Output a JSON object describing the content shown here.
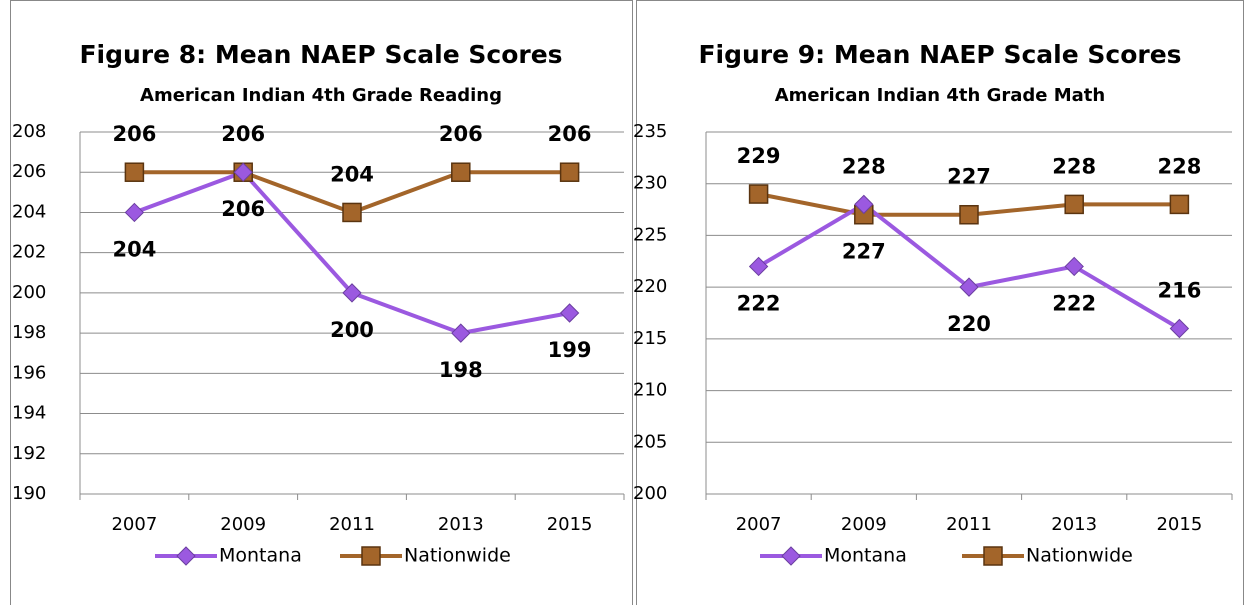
{
  "chart_data": [
    {
      "type": "line",
      "title": "Figure 8:  Mean NAEP Scale Scores",
      "subtitle": "American Indian 4th Grade Reading",
      "categories": [
        "2007",
        "2009",
        "2011",
        "2013",
        "2015"
      ],
      "series": [
        {
          "name": "Montana",
          "color": "#9b59e0",
          "values": [
            204,
            206,
            200,
            198,
            199
          ]
        },
        {
          "name": "Nationwide",
          "color": "#a3652a",
          "values": [
            206,
            206,
            204,
            206,
            206
          ]
        }
      ],
      "ylim": [
        190,
        208
      ],
      "yticks": [
        190,
        192,
        194,
        196,
        198,
        200,
        202,
        204,
        206,
        208
      ],
      "grid": true,
      "legend": "bottom"
    },
    {
      "type": "line",
      "title": "Figure 9:  Mean NAEP Scale Scores",
      "subtitle": "American Indian 4th Grade Math",
      "categories": [
        "2007",
        "2009",
        "2011",
        "2013",
        "2015"
      ],
      "series": [
        {
          "name": "Montana",
          "color": "#9b59e0",
          "values": [
            222,
            228,
            220,
            222,
            216
          ]
        },
        {
          "name": "Nationwide",
          "color": "#a3652a",
          "values": [
            229,
            227,
            227,
            228,
            228
          ]
        }
      ],
      "ylim": [
        200,
        235
      ],
      "yticks": [
        200,
        205,
        210,
        215,
        220,
        225,
        230,
        235
      ],
      "grid": true,
      "legend": "bottom"
    }
  ]
}
